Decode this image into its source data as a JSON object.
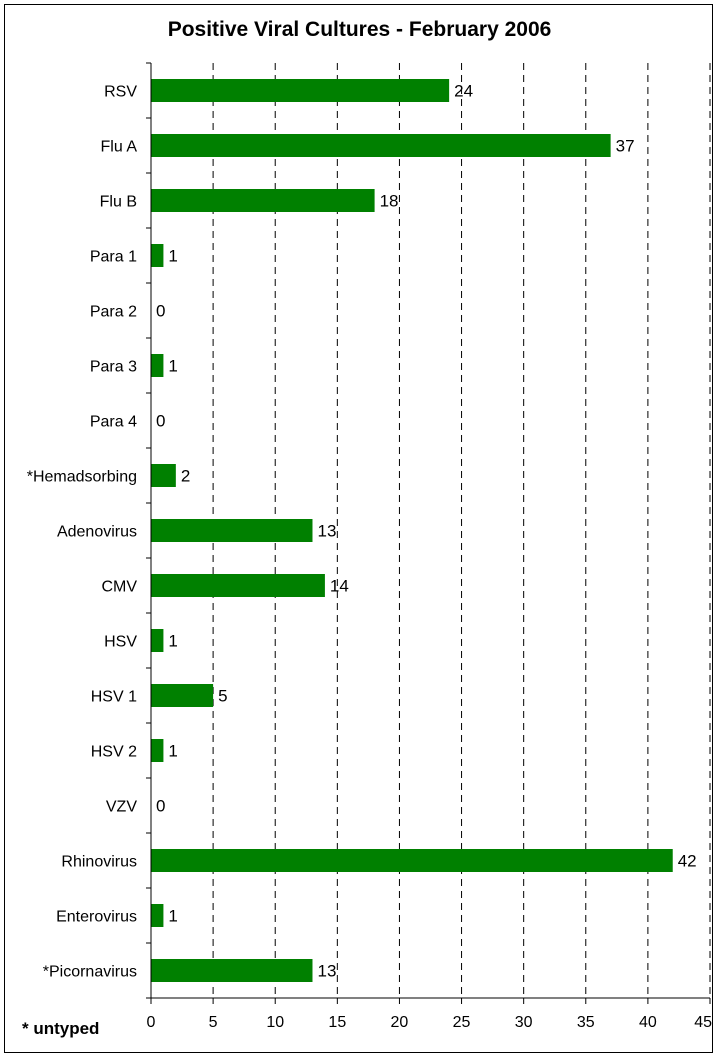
{
  "chart_data": {
    "type": "bar",
    "orientation": "horizontal",
    "title": "Positive Viral Cultures - February 2006",
    "xlabel": "",
    "ylabel": "",
    "xlim": [
      0,
      45
    ],
    "x_ticks": [
      "0",
      "5",
      "10",
      "15",
      "20",
      "25",
      "30",
      "35",
      "40",
      "45"
    ],
    "grid": "vertical dashed",
    "categories": [
      "RSV",
      "Flu A",
      "Flu B",
      "Para 1",
      "Para 2",
      "Para 3",
      "Para 4",
      "*Hemadsorbing",
      "Adenovirus",
      "CMV",
      "HSV",
      "HSV 1",
      "HSV 2",
      "VZV",
      "Rhinovirus",
      "Enterovirus",
      "*Picornavirus"
    ],
    "values": [
      24,
      37,
      18,
      1,
      0,
      1,
      0,
      2,
      13,
      14,
      1,
      5,
      1,
      0,
      42,
      1,
      13
    ],
    "value_labels": [
      "24",
      "37",
      "18",
      "1",
      "0",
      "1",
      "0",
      "2",
      "13",
      "14",
      "1",
      "5",
      "1",
      "0",
      "42",
      "1",
      "13"
    ],
    "bar_color": "#008000",
    "note": "* untyped"
  }
}
